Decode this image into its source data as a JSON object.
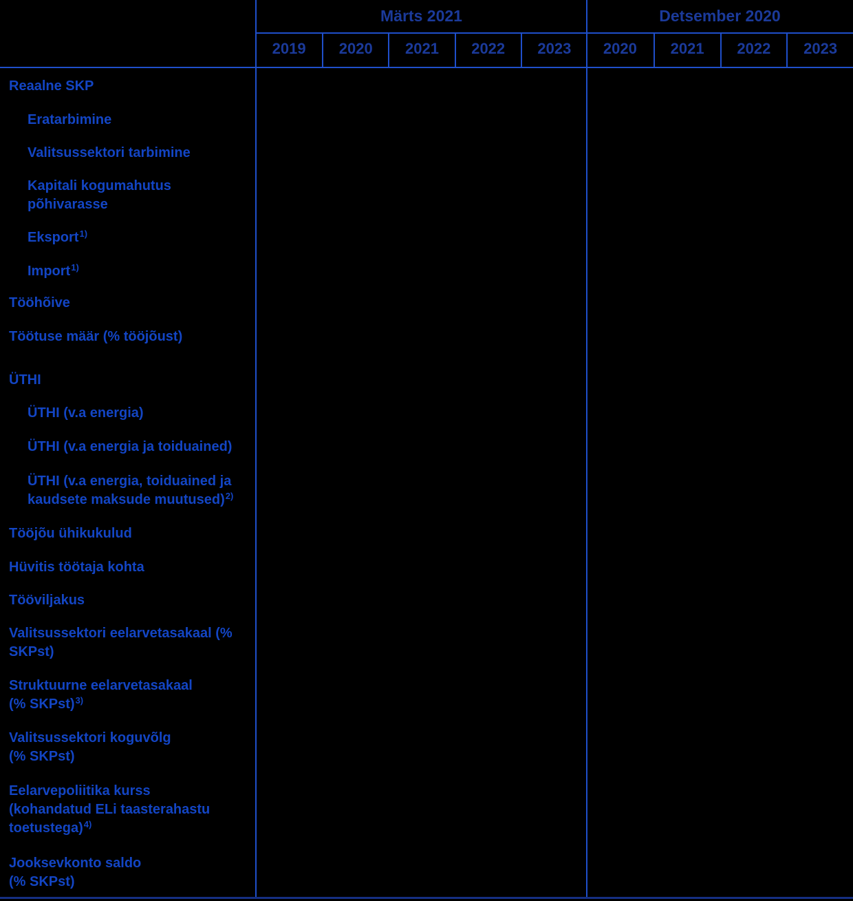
{
  "colors": {
    "background": "#000000",
    "header_text": "#1b3a9a",
    "label_text": "#1345c4",
    "grid_line": "#1f4fca",
    "bottom_border": "#152f82"
  },
  "table": {
    "groups": [
      {
        "label": "Märts 2021",
        "years": [
          "2019",
          "2020",
          "2021",
          "2022",
          "2023"
        ]
      },
      {
        "label": "Detsember 2020",
        "years": [
          "2020",
          "2021",
          "2022",
          "2023"
        ]
      }
    ],
    "rows": [
      {
        "indent": 0,
        "lines": [
          "Reaalne SKP"
        ]
      },
      {
        "indent": 1,
        "lines": [
          "Eratarbimine"
        ]
      },
      {
        "indent": 1,
        "lines": [
          "Valitsussektori tarbimine"
        ]
      },
      {
        "indent": 1,
        "lines": [
          "Kapitali kogumahutus",
          "põhivarasse"
        ]
      },
      {
        "indent": 1,
        "lines": [
          "Eksport"
        ],
        "footnote_marker": "1)"
      },
      {
        "indent": 1,
        "lines": [
          "Import"
        ],
        "footnote_marker": "1)"
      },
      {
        "indent": 0,
        "lines": [
          "Tööhõive"
        ]
      },
      {
        "indent": 0,
        "lines": [
          "Töötuse määr (% tööjõust)"
        ]
      },
      {
        "indent": 0,
        "lines": [
          "ÜTHI"
        ]
      },
      {
        "indent": 1,
        "lines": [
          "ÜTHI (v.a energia)"
        ]
      },
      {
        "indent": 1,
        "lines": [
          "ÜTHI (v.a energia ja toiduained)"
        ]
      },
      {
        "indent": 1,
        "lines": [
          "ÜTHI (v.a energia, toiduained ja",
          "kaudsete maksude muutused)"
        ],
        "footnote_marker": "2)"
      },
      {
        "indent": 0,
        "lines": [
          "Tööjõu ühikukulud"
        ]
      },
      {
        "indent": 0,
        "lines": [
          "Hüvitis töötaja kohta"
        ]
      },
      {
        "indent": 0,
        "lines": [
          "Tööviljakus"
        ]
      },
      {
        "indent": 0,
        "lines": [
          "Valitsussektori eelarvetasakaal (%",
          "SKPst)"
        ]
      },
      {
        "indent": 0,
        "lines": [
          "Struktuurne eelarvetasakaal",
          "(% SKPst)"
        ],
        "footnote_marker": "3)"
      },
      {
        "indent": 0,
        "lines": [
          "Valitsussektori koguvõlg",
          "(% SKPst)"
        ]
      },
      {
        "indent": 0,
        "lines": [
          "Eelarvepoliitika kurss",
          "(kohandatud ELi taasterahastu",
          "toetustega)"
        ],
        "footnote_marker": "4)"
      },
      {
        "indent": 0,
        "lines": [
          "Jooksevkonto saldo",
          "(% SKPst)"
        ]
      }
    ],
    "cell_values": []
  }
}
